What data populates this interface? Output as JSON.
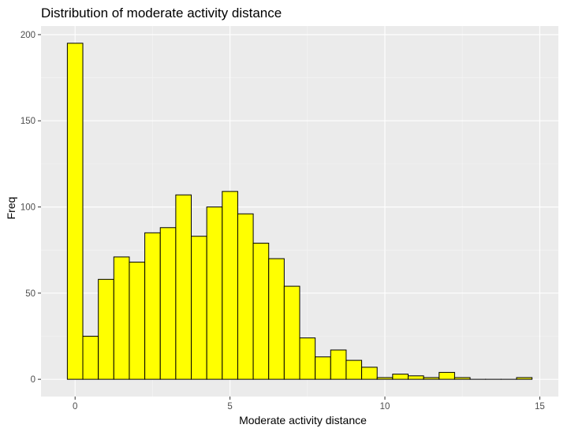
{
  "chart_data": {
    "type": "bar",
    "title": "Distribution of moderate activity distance",
    "xlabel": "Moderate activity distance",
    "ylabel": "Freq",
    "bin_width": 0.5,
    "bin_centers": [
      0,
      0.5,
      1,
      1.5,
      2,
      2.5,
      3,
      3.5,
      4,
      4.5,
      5,
      5.5,
      6,
      6.5,
      7,
      7.5,
      8,
      8.5,
      9,
      9.5,
      10,
      10.5,
      11,
      11.5,
      12,
      12.5,
      13,
      13.5,
      14,
      14.5
    ],
    "values": [
      195,
      25,
      58,
      71,
      68,
      85,
      88,
      107,
      83,
      100,
      109,
      96,
      79,
      70,
      54,
      24,
      13,
      17,
      11,
      7,
      1,
      3,
      2,
      1,
      4,
      1,
      0,
      0,
      0,
      1
    ],
    "xlim": [
      -1.1,
      15.6
    ],
    "ylim": [
      -10,
      205
    ],
    "x_ticks": [
      0,
      5,
      10,
      15
    ],
    "x_tick_labels": [
      "0",
      "5",
      "10",
      "15"
    ],
    "y_ticks": [
      0,
      50,
      100,
      150,
      200
    ],
    "y_tick_labels": [
      "0",
      "50",
      "100",
      "150",
      "200"
    ],
    "grid": true,
    "colors": {
      "bar_fill": "#ffff00",
      "bar_stroke": "#000000",
      "panel_background": "#ebebeb",
      "grid_major": "#ffffff",
      "grid_minor": "#f5f5f5"
    }
  }
}
